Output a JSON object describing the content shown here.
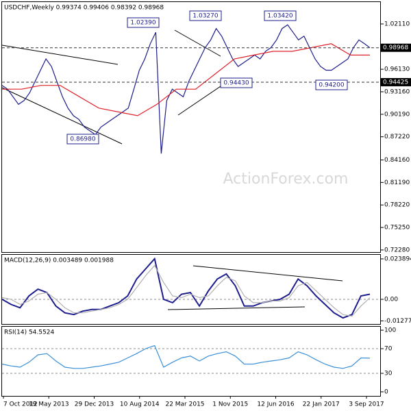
{
  "chart_data": [
    {
      "type": "line",
      "title": "USDCHF,Weekly  0.99374 0.99406 0.98392 0.98968",
      "series": [
        {
          "color": "#1c1c8c",
          "values": [
            0.94,
            0.935,
            0.925,
            0.915,
            0.92,
            0.93,
            0.945,
            0.96,
            0.975,
            0.965,
            0.945,
            0.925,
            0.91,
            0.9,
            0.895,
            0.885,
            0.88,
            0.875,
            0.885,
            0.89,
            0.895,
            0.9,
            0.905,
            0.91,
            0.935,
            0.96,
            0.975,
            0.995,
            1.01,
            0.85,
            0.92,
            0.935,
            0.93,
            0.925,
            0.945,
            0.96,
            0.975,
            0.99,
            1.0,
            1.015,
            1.005,
            0.99,
            0.975,
            0.965,
            0.97,
            0.975,
            0.98,
            0.975,
            0.985,
            0.99,
            1.0,
            1.015,
            1.02,
            1.01,
            1.0,
            1.005,
            0.99,
            0.975,
            0.965,
            0.96,
            0.96,
            0.965,
            0.97,
            0.975,
            0.99,
            1.0,
            0.995,
            0.98968
          ]
        },
        {
          "color": "#e0202a",
          "values": [
            0.935,
            0.935,
            0.94,
            0.94,
            0.925,
            0.91,
            0.905,
            0.9,
            0.915,
            0.935,
            0.935,
            0.955,
            0.975,
            0.98,
            0.985,
            0.985,
            0.99,
            0.995,
            0.98,
            0.98
          ]
        }
      ],
      "ylim": [
        0.72,
        1.05
      ],
      "yticks": [
        {
          "value": 1.0211,
          "label": "1.02110"
        },
        {
          "value": 0.9613,
          "label": "0.96130"
        },
        {
          "value": 0.9316,
          "label": "0.93160"
        },
        {
          "value": 0.9019,
          "label": "0.90190"
        },
        {
          "value": 0.8722,
          "label": "0.87220"
        },
        {
          "value": 0.8416,
          "label": "0.84160"
        },
        {
          "value": 0.8119,
          "label": "0.81190"
        },
        {
          "value": 0.7822,
          "label": "0.78220"
        },
        {
          "value": 0.7525,
          "label": "0.75250"
        },
        {
          "value": 0.7228,
          "label": "0.72280"
        }
      ],
      "price_lines": [
        0.98968,
        0.94425
      ],
      "annotations": [
        "1.02390",
        "1.03270",
        "1.03420",
        "0.86980",
        "0.94430",
        "0.94200"
      ],
      "watermark": "ActionForex.com"
    },
    {
      "type": "line",
      "title": "MACD(12,26,9) 0.003489 0.001988",
      "series": [
        {
          "color": "#1c1c8c",
          "values": [
            0.0,
            -0.003,
            -0.005,
            0.002,
            0.006,
            0.004,
            -0.004,
            -0.008,
            -0.009,
            -0.007,
            -0.006,
            -0.006,
            -0.004,
            -0.002,
            0.002,
            0.012,
            0.018,
            0.024,
            0.0,
            -0.002,
            0.003,
            0.004,
            -0.004,
            0.005,
            0.012,
            0.015,
            0.008,
            -0.004,
            -0.004,
            -0.002,
            -0.001,
            0.0,
            0.003,
            0.012,
            0.008,
            0.002,
            -0.003,
            -0.008,
            -0.011,
            -0.009,
            0.002,
            0.003
          ]
        },
        {
          "color": "#b0b0b0",
          "values": [
            0.001,
            0.0,
            -0.003,
            -0.001,
            0.003,
            0.004,
            0.0,
            -0.005,
            -0.008,
            -0.008,
            -0.007,
            -0.006,
            -0.005,
            -0.003,
            0.0,
            0.007,
            0.014,
            0.02,
            0.01,
            0.002,
            0.001,
            0.003,
            0.001,
            0.002,
            0.008,
            0.013,
            0.011,
            0.002,
            -0.002,
            -0.002,
            -0.001,
            -0.001,
            0.001,
            0.008,
            0.01,
            0.005,
            0.0,
            -0.005,
            -0.009,
            -0.01,
            -0.004,
            0.001
          ]
        }
      ],
      "ylim": [
        -0.0146,
        0.0263
      ],
      "yticks": [
        0.023894,
        {
          "value": 0,
          "label": "0.00"
        },
        -0.012772
      ]
    },
    {
      "type": "line",
      "title": "RSI(14) 54.5524",
      "series": [
        {
          "color": "#3a8fd8",
          "values": [
            45,
            42,
            40,
            48,
            60,
            62,
            50,
            40,
            38,
            38,
            40,
            42,
            45,
            48,
            55,
            62,
            70,
            75,
            40,
            48,
            55,
            58,
            50,
            58,
            62,
            65,
            58,
            45,
            45,
            48,
            50,
            52,
            55,
            65,
            60,
            52,
            45,
            40,
            38,
            42,
            55,
            54.5524
          ]
        }
      ],
      "ylim": [
        -6.7,
        105.6
      ],
      "yticks": [
        100,
        70,
        30,
        0
      ]
    }
  ],
  "x_axis_labels": [
    "7 Oct 2012",
    "19 May 2013",
    "29 Dec 2013",
    "10 Aug 2014",
    "22 Mar 2015",
    "1 Nov 2015",
    "12 Jun 2016",
    "22 Jan 2017",
    "3 Sep 2017"
  ]
}
